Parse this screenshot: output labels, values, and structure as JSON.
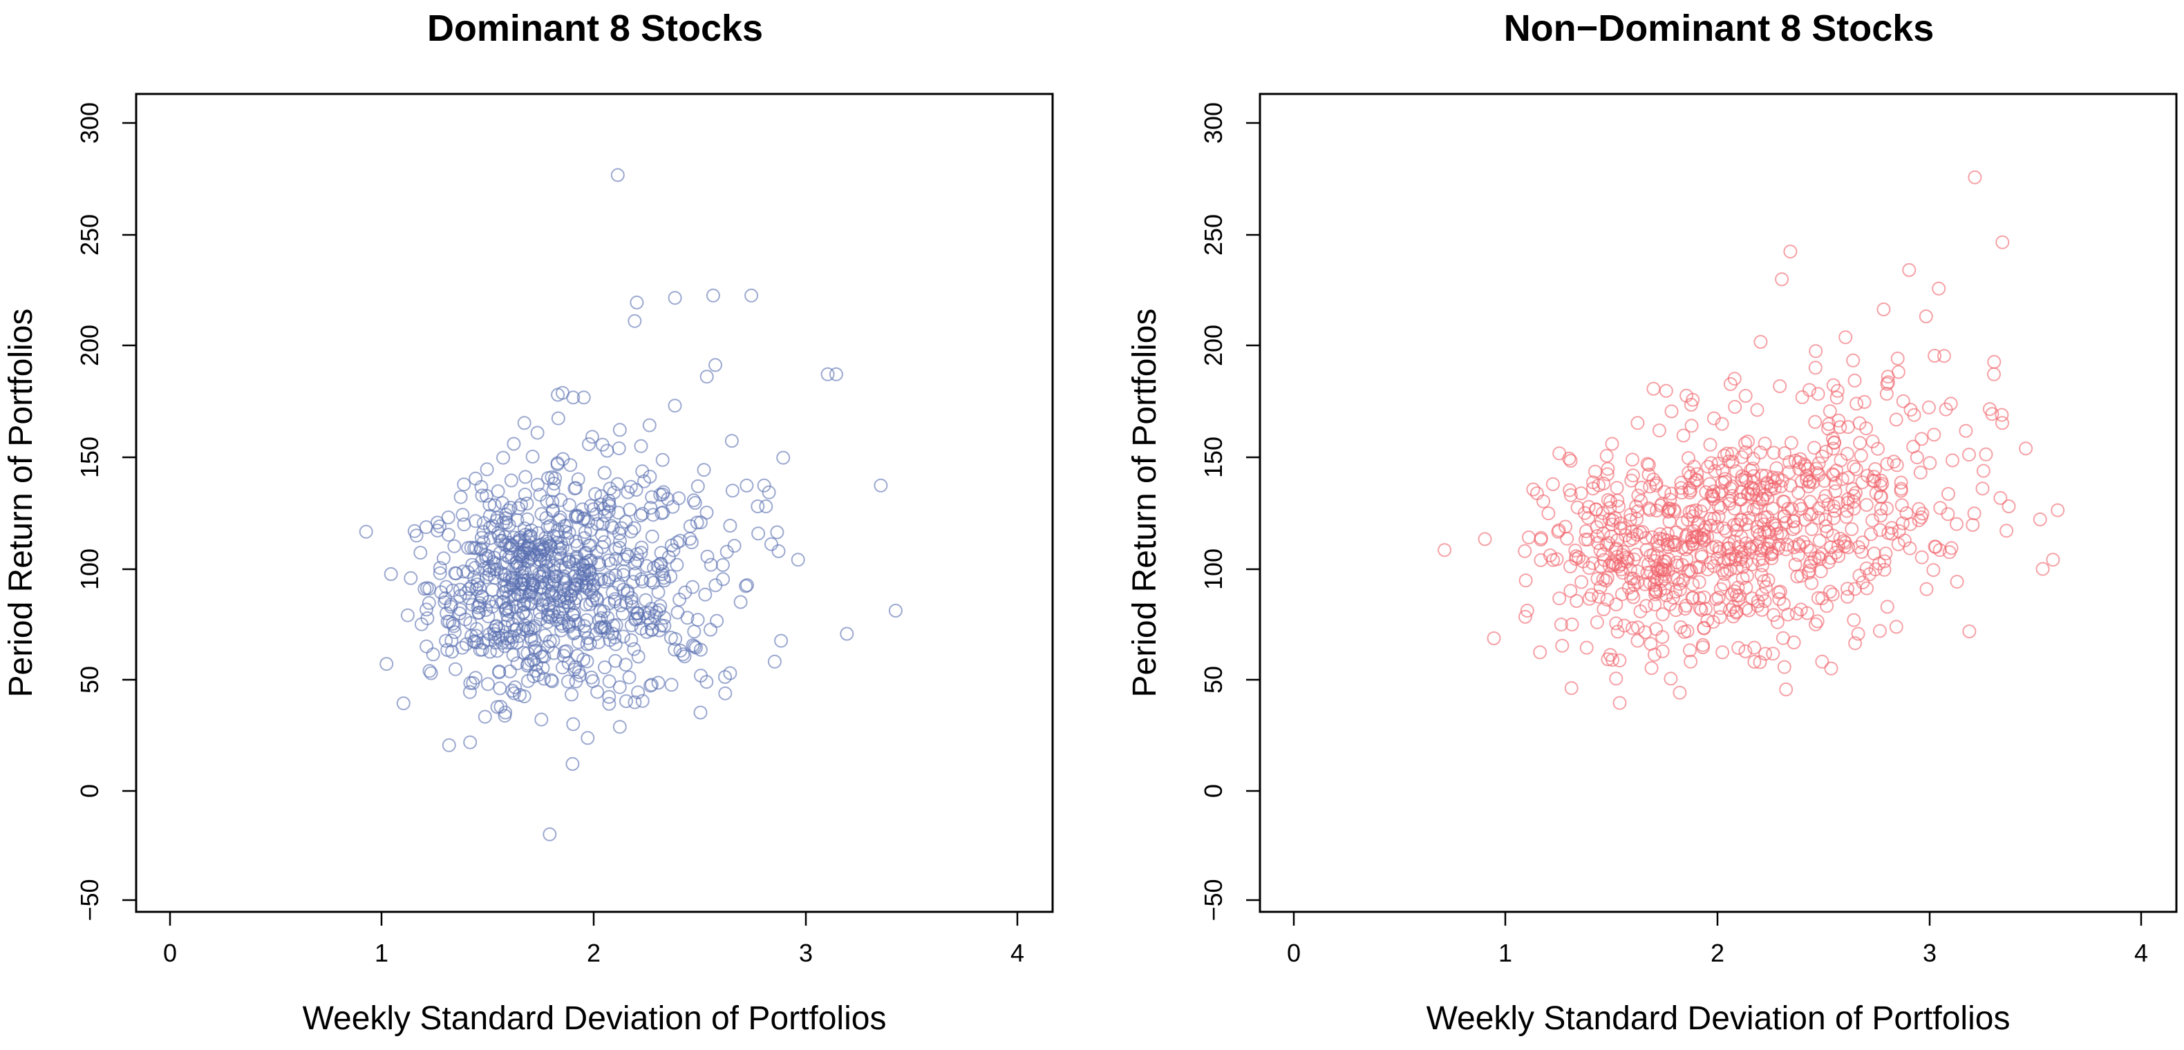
{
  "chart_data": [
    {
      "type": "scatter",
      "title": "Dominant 8 Stocks",
      "xlabel": "Weekly Standard Deviation of Portfolios",
      "ylabel": "Period Return of Portfolios",
      "xlim": [
        -0.16,
        4.16
      ],
      "ylim": [
        -53,
        300
      ],
      "xticks": [
        "0",
        "1",
        "2",
        "3",
        "4"
      ],
      "xtick_values": [
        0,
        1,
        2,
        3,
        4
      ],
      "yticks": [
        "−50",
        "0",
        "50",
        "100",
        "150",
        "200",
        "250",
        "300"
      ],
      "ytick_values": [
        -50,
        0,
        50,
        100,
        150,
        200,
        250,
        300
      ],
      "grid": false,
      "marker": "open-circle",
      "color": "#5a6fb0",
      "series": [
        {
          "name": "Dominant 8 Stocks",
          "x": [
            2.11,
            2.56,
            2.38,
            2.2,
            2.74,
            2.19,
            3.1,
            3.14,
            1.85,
            1.9,
            1.95,
            2.53,
            2.57,
            3.35,
            3.42,
            3.19,
            2.96,
            2.89,
            2.8,
            2.77,
            2.26,
            2.12,
            2.22,
            2.06,
            1.99,
            1.83,
            1.67,
            1.62,
            1.57,
            1.44,
            1.37,
            1.26,
            1.18,
            1.12,
            1.02,
            1.1,
            1.23,
            1.3,
            1.52,
            1.7,
            1.78,
            2.05,
            2.31,
            2.33,
            2.45,
            2.66,
            2.72,
            2.88,
            2.85,
            2.64,
            2.47,
            1.75,
            1.67,
            2.5,
            2.27,
            2.12,
            1.9,
            1.58,
            1.44
          ],
          "y": [
            265,
            213,
            212,
            210,
            213,
            202,
            179,
            179,
            171,
            169,
            169,
            178,
            183,
            131,
            77,
            67,
            99,
            143,
            131,
            122,
            157,
            155,
            148,
            146,
            152,
            160,
            158,
            149,
            143,
            134,
            126,
            115,
            102,
            75,
            54,
            37,
            50,
            64,
            86,
            100,
            113,
            118,
            127,
            90,
            108,
            105,
            88,
            64,
            55,
            50,
            68,
            30,
            40,
            33,
            45,
            44,
            28,
            33,
            48
          ]
        }
      ]
    },
    {
      "type": "scatter",
      "title": "Non−Dominant 8 Stocks",
      "xlabel": "Weekly Standard Deviation of Portfolios",
      "ylabel": "Period Return of Portfolios",
      "xlim": [
        -0.16,
        4.16
      ],
      "ylim": [
        -53,
        300
      ],
      "xticks": [
        "0",
        "1",
        "2",
        "3",
        "4"
      ],
      "xtick_values": [
        0,
        1,
        2,
        3,
        4
      ],
      "yticks": [
        "−50",
        "0",
        "50",
        "100",
        "150",
        "200",
        "250",
        "300"
      ],
      "ytick_values": [
        -50,
        0,
        50,
        100,
        150,
        200,
        250,
        300
      ],
      "grid": false,
      "marker": "open-circle",
      "color": "#f0626a",
      "series": [
        {
          "name": "Non−Dominant 8 Stocks",
          "x": [
            3.21,
            3.34,
            2.34,
            2.9,
            2.3,
            2.78,
            3.04,
            2.98,
            3.02,
            2.85,
            2.6,
            2.46,
            2.2,
            3.3,
            3.28,
            3.45,
            3.53,
            3.37,
            3.2,
            3.1,
            2.96,
            2.72,
            2.64,
            2.5,
            2.38,
            2.14,
            1.98,
            1.88,
            1.78,
            1.62,
            1.5,
            1.42,
            1.3,
            1.2,
            1.1,
            1.16,
            1.26,
            1.38,
            1.48,
            1.62,
            1.7,
            1.87,
            2.02,
            2.17,
            2.32,
            2.49,
            2.66,
            2.84,
            2.28,
            2.54,
            1.82,
            2.05
          ],
          "y": [
            264,
            236,
            232,
            224,
            220,
            207,
            216,
            204,
            187,
            180,
            195,
            189,
            193,
            179,
            164,
            147,
            95,
            122,
            114,
            104,
            100,
            110,
            121,
            133,
            141,
            150,
            160,
            168,
            163,
            158,
            149,
            137,
            129,
            119,
            77,
            59,
            71,
            61,
            56,
            64,
            58,
            55,
            59,
            61,
            43,
            55,
            67,
            70,
            72,
            84,
            86,
            104
          ]
        }
      ]
    }
  ]
}
